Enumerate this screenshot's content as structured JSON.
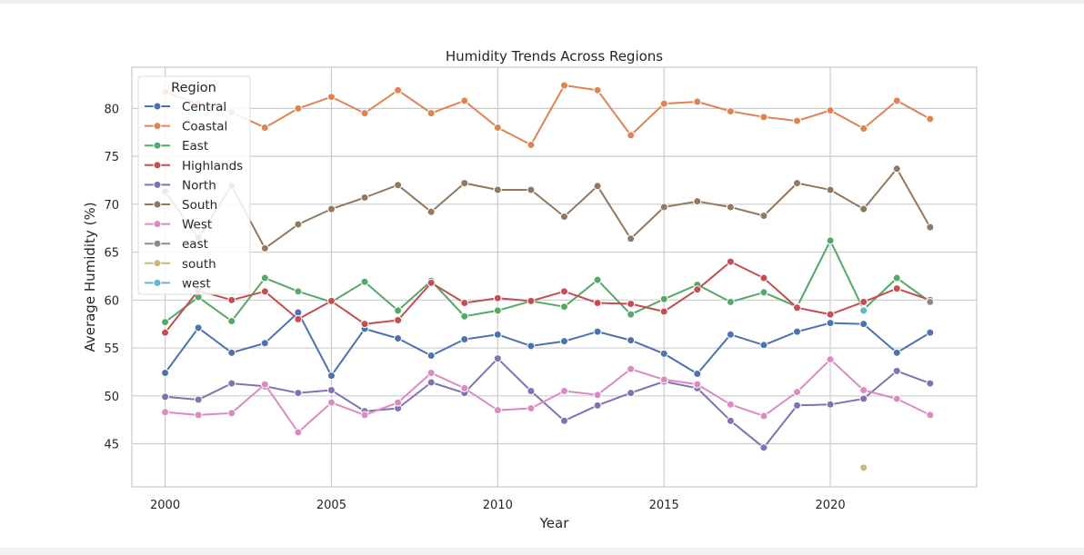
{
  "chart_data": {
    "type": "line",
    "title": "Humidity Trends Across Regions",
    "xlabel": "Year",
    "ylabel": "Average Humidity (%)",
    "xlim": [
      1999,
      2024.4
    ],
    "ylim": [
      40.5,
      84.3
    ],
    "xticks": [
      2000,
      2005,
      2010,
      2015,
      2020
    ],
    "yticks": [
      45,
      50,
      55,
      60,
      65,
      70,
      75,
      80
    ],
    "grid": true,
    "legend": {
      "title": "Region",
      "placement": "top-left"
    },
    "x": [
      2000,
      2001,
      2002,
      2003,
      2004,
      2005,
      2006,
      2007,
      2008,
      2009,
      2010,
      2011,
      2012,
      2013,
      2014,
      2015,
      2016,
      2017,
      2018,
      2019,
      2020,
      2021,
      2022,
      2023
    ],
    "series": [
      {
        "name": "Central",
        "color": "#4c72b0",
        "values": [
          52.4,
          57.1,
          54.5,
          55.5,
          58.7,
          52.1,
          57.0,
          56.0,
          54.2,
          55.9,
          56.4,
          55.2,
          55.7,
          56.7,
          55.8,
          54.4,
          52.3,
          56.4,
          55.3,
          56.7,
          57.6,
          57.5,
          54.5,
          56.6
        ]
      },
      {
        "name": "Coastal",
        "color": "#dd8452",
        "values": [
          81.7,
          80.5,
          79.6,
          78.0,
          80.0,
          81.2,
          79.5,
          81.9,
          79.5,
          80.8,
          78.0,
          76.2,
          82.4,
          81.9,
          77.2,
          80.5,
          80.7,
          79.7,
          79.1,
          78.7,
          79.8,
          77.9,
          80.8,
          78.9
        ]
      },
      {
        "name": "East",
        "color": "#55a868",
        "values": [
          57.7,
          60.3,
          57.8,
          62.3,
          60.9,
          59.8,
          61.9,
          58.9,
          62.0,
          58.3,
          58.9,
          59.9,
          59.3,
          62.1,
          58.5,
          60.1,
          61.6,
          59.8,
          60.8,
          59.3,
          66.2,
          59.0,
          62.3,
          59.8
        ]
      },
      {
        "name": "Highlands",
        "color": "#c44e52",
        "values": [
          56.6,
          61.0,
          60.0,
          60.9,
          58.0,
          59.9,
          57.5,
          57.9,
          61.8,
          59.7,
          60.2,
          59.9,
          60.9,
          59.7,
          59.6,
          58.8,
          61.1,
          64.0,
          62.3,
          59.2,
          58.5,
          59.8,
          61.2,
          60.0
        ]
      },
      {
        "name": "North",
        "color": "#8172b3",
        "values": [
          49.9,
          49.6,
          51.3,
          51.0,
          50.3,
          50.6,
          48.4,
          48.7,
          51.4,
          50.3,
          53.9,
          50.5,
          47.4,
          49.0,
          50.3,
          51.5,
          50.8,
          47.4,
          44.6,
          49.0,
          49.1,
          49.7,
          52.6,
          51.3
        ]
      },
      {
        "name": "South",
        "color": "#937860",
        "values": [
          71.3,
          66.5,
          71.9,
          65.4,
          67.9,
          69.5,
          70.7,
          72.0,
          69.2,
          72.2,
          71.5,
          71.5,
          68.7,
          71.9,
          66.4,
          69.7,
          70.3,
          69.7,
          68.8,
          72.2,
          71.5,
          69.5,
          73.7,
          67.6
        ]
      },
      {
        "name": "West",
        "color": "#da8bc3",
        "values": [
          48.3,
          48.0,
          48.2,
          51.2,
          46.2,
          49.3,
          48.0,
          49.3,
          52.4,
          50.8,
          48.5,
          48.7,
          50.5,
          50.1,
          52.8,
          51.7,
          51.2,
          49.1,
          47.9,
          50.4,
          53.8,
          50.6,
          49.7,
          48.0
        ]
      },
      {
        "name": "east",
        "color": "#8c8c8c",
        "values": [
          null,
          null,
          null,
          null,
          null,
          null,
          null,
          null,
          null,
          null,
          null,
          null,
          null,
          null,
          null,
          null,
          null,
          null,
          null,
          null,
          null,
          null,
          null,
          59.8
        ]
      },
      {
        "name": "south",
        "color": "#ccb974",
        "values": [
          null,
          null,
          null,
          null,
          null,
          null,
          null,
          null,
          null,
          null,
          null,
          null,
          null,
          null,
          null,
          null,
          null,
          null,
          null,
          null,
          null,
          42.5,
          null,
          null
        ]
      },
      {
        "name": "west",
        "color": "#64b5cd",
        "values": [
          null,
          null,
          null,
          null,
          null,
          null,
          null,
          null,
          null,
          null,
          null,
          null,
          null,
          null,
          null,
          null,
          null,
          null,
          null,
          null,
          null,
          58.9,
          null,
          null
        ]
      }
    ]
  }
}
